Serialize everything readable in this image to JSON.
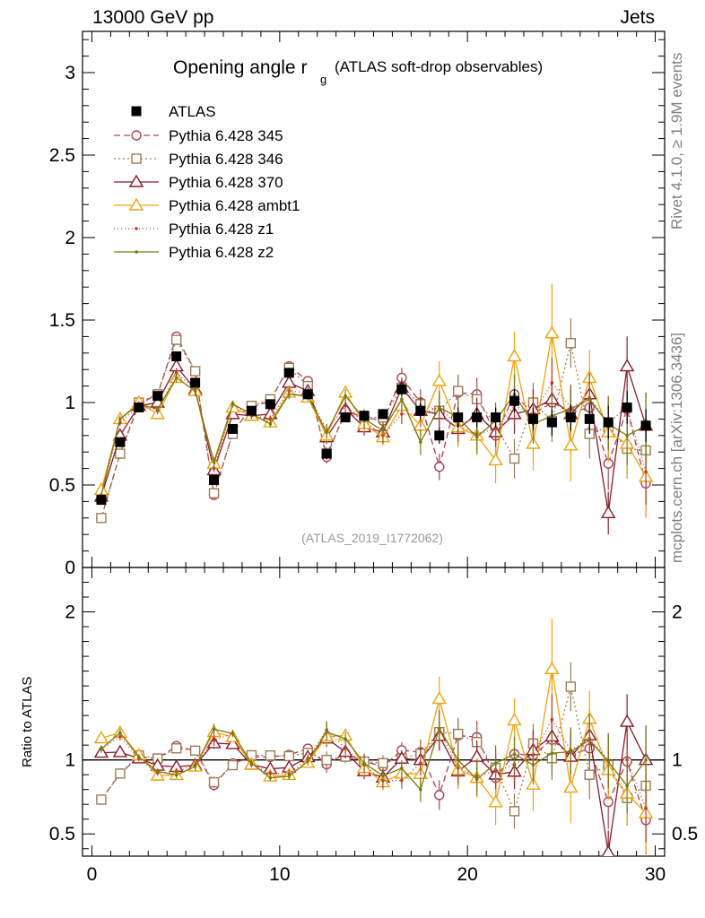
{
  "header": {
    "left": "13000 GeV pp",
    "right": "Jets"
  },
  "side": {
    "rivet": "Rivet 4.1.0, ≥ 1.9M events",
    "mcplots": "mcplots.cern.ch [arXiv:1306.3436]"
  },
  "ratio_ylabel": "Ratio to ATLAS",
  "colors": {
    "axis": "#000000",
    "watermark": "#999999"
  },
  "chart_data": {
    "type": "scatter",
    "title": "Opening angle r",
    "title_subscript": "g",
    "title_suffix": "(ATLAS soft-drop observables)",
    "analysis": "(ATLAS_2019_I1772062)",
    "x": [
      0.5,
      1.5,
      2.5,
      3.5,
      4.5,
      5.5,
      6.5,
      7.5,
      8.5,
      9.5,
      10.5,
      11.5,
      12.5,
      13.5,
      14.5,
      15.5,
      16.5,
      17.5,
      18.5,
      19.5,
      20.5,
      21.5,
      22.5,
      23.5,
      24.5,
      25.5,
      26.5,
      27.5,
      28.5,
      29.5
    ],
    "xlim": [
      -0.5,
      30.5
    ],
    "main_ylim": [
      0,
      3.25
    ],
    "main_yticks": [
      0,
      0.5,
      1,
      1.5,
      2,
      2.5,
      3
    ],
    "main_ytick_labels": [
      "0",
      "0.5",
      "1",
      "1.5",
      "2",
      "2.5",
      "3"
    ],
    "ratio_ylim": [
      0.35,
      2.3
    ],
    "ratio_yticks": [
      0.5,
      1,
      2
    ],
    "ratio_ytick_labels": [
      "0.5",
      "1",
      "2"
    ],
    "xticks": [
      0,
      10,
      20,
      30
    ],
    "xtick_labels": [
      "0",
      "10",
      "20",
      "30"
    ],
    "data": {
      "name": "ATLAS",
      "values": [
        0.41,
        0.76,
        0.97,
        1.04,
        1.28,
        1.12,
        0.53,
        0.84,
        0.95,
        0.99,
        1.18,
        1.05,
        0.69,
        0.91,
        0.92,
        0.93,
        1.08,
        0.95,
        0.8,
        0.91,
        0.91,
        0.91,
        1.01,
        0.9,
        0.88,
        0.91,
        0.9,
        0.88,
        0.97,
        0.86
      ],
      "errors": [
        0.02,
        0.02,
        0.02,
        0.02,
        0.03,
        0.03,
        0.02,
        0.02,
        0.02,
        0.02,
        0.03,
        0.03,
        0.03,
        0.03,
        0.03,
        0.03,
        0.04,
        0.05,
        0.05,
        0.06,
        0.06,
        0.06,
        0.07,
        0.07,
        0.08,
        0.08,
        0.09,
        0.1,
        0.1,
        0.1
      ]
    },
    "series": [
      {
        "name": "Pythia 6.428 345",
        "color": "#b04050",
        "marker": "circle",
        "dash": "7,4",
        "values": [
          0.3,
          0.69,
          0.99,
          1.05,
          1.4,
          1.19,
          0.44,
          0.82,
          0.97,
          1.01,
          1.22,
          1.13,
          0.67,
          0.95,
          0.91,
          0.89,
          1.15,
          1.0,
          0.61,
          1.06,
          1.05,
          0.8,
          1.05,
          0.93,
          1.0,
          0.94,
          0.97,
          0.63,
          0.96,
          0.51
        ],
        "errors": [
          0.01,
          0.02,
          0.02,
          0.02,
          0.03,
          0.03,
          0.02,
          0.02,
          0.02,
          0.02,
          0.03,
          0.03,
          0.04,
          0.04,
          0.05,
          0.05,
          0.06,
          0.08,
          0.08,
          0.1,
          0.1,
          0.11,
          0.12,
          0.12,
          0.13,
          0.14,
          0.15,
          0.16,
          0.18,
          0.2
        ]
      },
      {
        "name": "Pythia 6.428 346",
        "color": "#9c7c52",
        "marker": "square",
        "dash": "2,3",
        "values": [
          0.3,
          0.69,
          1.0,
          1.05,
          1.38,
          1.19,
          0.45,
          0.81,
          0.98,
          1.02,
          1.21,
          1.1,
          0.69,
          0.93,
          0.91,
          0.91,
          1.09,
          0.99,
          0.95,
          1.07,
          1.02,
          0.86,
          0.66,
          1.0,
          0.89,
          1.36,
          0.81,
          0.85,
          0.72,
          0.71
        ],
        "errors": [
          0.01,
          0.02,
          0.02,
          0.02,
          0.03,
          0.03,
          0.02,
          0.02,
          0.02,
          0.02,
          0.03,
          0.03,
          0.04,
          0.04,
          0.05,
          0.05,
          0.06,
          0.08,
          0.08,
          0.1,
          0.1,
          0.11,
          0.12,
          0.12,
          0.13,
          0.15,
          0.15,
          0.16,
          0.18,
          0.2
        ]
      },
      {
        "name": "Pythia 6.428 370",
        "color": "#8b1a2c",
        "marker": "triangle",
        "dash": "",
        "values": [
          0.43,
          0.8,
          0.98,
          1.0,
          1.22,
          1.08,
          0.59,
          0.93,
          0.92,
          0.93,
          1.12,
          1.07,
          0.79,
          0.96,
          0.85,
          0.82,
          1.09,
          0.95,
          0.93,
          0.84,
          0.93,
          0.82,
          0.93,
          0.96,
          1.02,
          0.93,
          1.05,
          0.33,
          1.22,
          0.86
        ],
        "errors": [
          0.01,
          0.02,
          0.02,
          0.02,
          0.03,
          0.03,
          0.02,
          0.02,
          0.02,
          0.02,
          0.03,
          0.03,
          0.04,
          0.04,
          0.05,
          0.05,
          0.06,
          0.08,
          0.08,
          0.1,
          0.1,
          0.11,
          0.12,
          0.12,
          0.13,
          0.14,
          0.15,
          0.13,
          0.18,
          0.2
        ]
      },
      {
        "name": "Pythia 6.428 ambt1",
        "color": "#f0a30a",
        "marker": "triangle",
        "dash": "",
        "values": [
          0.47,
          0.9,
          1.0,
          0.93,
          1.15,
          1.07,
          0.63,
          0.97,
          0.92,
          0.88,
          1.06,
          1.03,
          0.8,
          1.06,
          0.87,
          0.79,
          0.98,
          0.86,
          1.13,
          0.85,
          0.8,
          0.65,
          1.28,
          0.75,
          1.42,
          0.74,
          1.15,
          0.82,
          0.75,
          0.55
        ],
        "errors": [
          0.01,
          0.02,
          0.02,
          0.02,
          0.03,
          0.03,
          0.02,
          0.02,
          0.02,
          0.02,
          0.03,
          0.03,
          0.04,
          0.04,
          0.05,
          0.05,
          0.06,
          0.08,
          0.12,
          0.12,
          0.12,
          0.14,
          0.15,
          0.16,
          0.3,
          0.22,
          0.17,
          0.18,
          0.2,
          0.25
        ]
      },
      {
        "name": "Pythia 6.428 z1",
        "color": "#c0392b",
        "marker": "dot",
        "dash": "1,3",
        "values": [
          0.44,
          0.88,
          0.98,
          0.95,
          1.18,
          1.08,
          0.6,
          0.99,
          0.92,
          0.9,
          1.07,
          1.06,
          0.83,
          0.98,
          0.89,
          0.8,
          0.93,
          0.93,
          0.97,
          0.86,
          0.81,
          0.84,
          0.98,
          0.93,
          1.12,
          0.97,
          1.03,
          0.88,
          0.97,
          0.58
        ],
        "errors": [
          0.01,
          0.02,
          0.02,
          0.02,
          0.03,
          0.03,
          0.02,
          0.02,
          0.02,
          0.02,
          0.03,
          0.03,
          0.04,
          0.04,
          0.05,
          0.05,
          0.06,
          0.08,
          0.1,
          0.1,
          0.1,
          0.11,
          0.12,
          0.12,
          0.15,
          0.14,
          0.15,
          0.16,
          0.18,
          0.2
        ]
      },
      {
        "name": "Pythia 6.428 z2",
        "color": "#7a7a10",
        "marker": "dot",
        "dash": "",
        "values": [
          0.44,
          0.9,
          0.99,
          0.96,
          1.15,
          1.07,
          0.64,
          0.99,
          0.93,
          0.87,
          1.05,
          1.04,
          0.82,
          1.04,
          0.9,
          0.83,
          1.02,
          0.76,
          0.97,
          0.91,
          0.79,
          0.89,
          1.05,
          0.87,
          0.92,
          0.96,
          1.02,
          0.87,
          0.8,
          0.86
        ],
        "errors": [
          0.01,
          0.02,
          0.02,
          0.02,
          0.03,
          0.03,
          0.02,
          0.02,
          0.02,
          0.02,
          0.03,
          0.03,
          0.04,
          0.04,
          0.05,
          0.05,
          0.06,
          0.08,
          0.08,
          0.1,
          0.1,
          0.11,
          0.12,
          0.12,
          0.13,
          0.14,
          0.15,
          0.16,
          0.18,
          0.2
        ]
      }
    ]
  }
}
